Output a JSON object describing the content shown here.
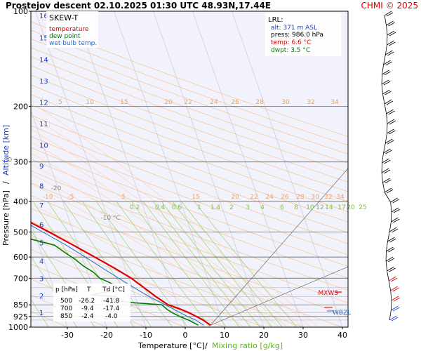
{
  "header": {
    "title": "Prostejov   descent   02.10.2025 01:30 UTC   48.93N,17.44E",
    "copyright": "CHMI © 2025"
  },
  "legend": {
    "title": "SKEW-T",
    "items": [
      {
        "label": "temperature",
        "color": "#e00000"
      },
      {
        "label": "dew point",
        "color": "#008000"
      },
      {
        "label": "wet bulb temp.",
        "color": "#1e6fd0"
      }
    ]
  },
  "lrl": {
    "title": "LRL:",
    "alt": "alt: 371 m ASL",
    "press": "press: 986.0 hPa",
    "temp": "temp: 6.6 °C",
    "dwpt": "dwpt: 3.5 °C"
  },
  "axes": {
    "xlabel_temp": "Temperature [°C]",
    "xlabel_sep": "/",
    "xlabel_mix": "Mixing ratio [g/kg]",
    "ylabel_pressure": "Pressure [hPa]",
    "ylabel_sep": "/",
    "ylabel_alt": "Altitude [km]"
  },
  "markers": {
    "mxws": "MXWS",
    "wbzl": "WBZL"
  },
  "table": {
    "headers": [
      "p [hPa]",
      "T",
      "Td [°C]"
    ],
    "rows": [
      [
        "500",
        "-26.2",
        "-41.8"
      ],
      [
        "700",
        "-9.4",
        "-17.4"
      ],
      [
        "850",
        "-2.4",
        "-4.0"
      ]
    ]
  },
  "chart_data": {
    "type": "line",
    "chart_kind": "skew-T log-p diagram",
    "title": "SKEW-T",
    "xlabel": "Temperature [°C] / Mixing ratio [g/kg]",
    "ylabel": "Pressure [hPa] / Altitude [km]",
    "xlim": [
      -35,
      45
    ],
    "ylim": [
      1000,
      100
    ],
    "y_scale": "log",
    "x_ticks": [
      "-30",
      "-20",
      "-10",
      "0",
      "10",
      "20",
      "30",
      "40"
    ],
    "y_ticks": [
      "100",
      "200",
      "300",
      "400",
      "500",
      "600",
      "700",
      "850",
      "925",
      "1000"
    ],
    "altitude_ticks_km": [
      "1",
      "2",
      "3",
      "4",
      "5",
      "6",
      "7",
      "8",
      "9",
      "10",
      "11",
      "12",
      "13",
      "14",
      "15",
      "16"
    ],
    "altitude_tick_pressures": [
      898,
      795,
      701,
      616,
      540,
      472,
      411,
      357,
      308,
      265,
      227,
      194,
      166,
      142,
      121,
      103
    ],
    "isotherm_labels": [
      "-80 °C",
      "-70",
      "-60",
      "-50",
      "-40",
      "-30",
      "-20",
      "-10 °C"
    ],
    "isotherm_label_values": [
      -80,
      -70,
      -60,
      -50,
      -40,
      -30,
      -20,
      -10
    ],
    "isotherm_label_pressures": [
      112,
      133,
      161,
      196,
      240,
      295,
      363,
      450
    ],
    "theta_labels_200": [
      "5",
      "10",
      "15",
      "20",
      "22",
      "24",
      "26",
      "28",
      "30",
      "32",
      "34"
    ],
    "theta_labels_380": [
      "-10",
      "-5",
      "5",
      "15",
      "20",
      "22",
      "24",
      "26",
      "28",
      "30",
      "32",
      "34"
    ],
    "mixing_ratio_labels": [
      "0.2",
      "0.4",
      "0.6",
      "1",
      "1.4",
      "2",
      "3",
      "4",
      "6",
      "8",
      "10",
      "12",
      "14",
      "17",
      "20",
      "25"
    ],
    "mixing_ratio_values": [
      0.2,
      0.4,
      0.6,
      1,
      1.4,
      2,
      3,
      4,
      6,
      8,
      10,
      12,
      14,
      17,
      20,
      25
    ],
    "grid": true,
    "series": [
      {
        "name": "temperature",
        "color": "#e00000",
        "points": [
          [
            986,
            6.6
          ],
          [
            950,
            5.2
          ],
          [
            925,
            3.8
          ],
          [
            900,
            2.2
          ],
          [
            875,
            0.2
          ],
          [
            850,
            -2.4
          ],
          [
            800,
            -4.8
          ],
          [
            750,
            -7.0
          ],
          [
            700,
            -9.4
          ],
          [
            650,
            -12.8
          ],
          [
            600,
            -16.8
          ],
          [
            550,
            -21.2
          ],
          [
            500,
            -26.2
          ],
          [
            450,
            -32.0
          ],
          [
            400,
            -38.5
          ],
          [
            350,
            -46.0
          ],
          [
            320,
            -51.0
          ],
          [
            300,
            -53.5
          ],
          [
            285,
            -53.0
          ],
          [
            270,
            -52.0
          ],
          [
            255,
            -50.5
          ],
          [
            240,
            -49.5
          ],
          [
            230,
            -49.0
          ],
          [
            220,
            -48.0
          ],
          [
            205,
            -47.0
          ],
          [
            195,
            -48.0
          ],
          [
            185,
            -50.0
          ],
          [
            175,
            -51.5
          ],
          [
            165,
            -53.5
          ],
          [
            155,
            -56.0
          ],
          [
            145,
            -58.5
          ],
          [
            135,
            -61.0
          ],
          [
            125,
            -63.5
          ],
          [
            115,
            -66.0
          ],
          [
            108,
            -67.5
          ],
          [
            103,
            -68.5
          ],
          [
            100,
            -69.0
          ]
        ]
      },
      {
        "name": "dew point",
        "color": "#008000",
        "points": [
          [
            986,
            3.5
          ],
          [
            950,
            1.5
          ],
          [
            925,
            -0.5
          ],
          [
            900,
            -2.0
          ],
          [
            880,
            -3.0
          ],
          [
            850,
            -4.0
          ],
          [
            835,
            -12.0
          ],
          [
            820,
            -16.0
          ],
          [
            800,
            -15.0
          ],
          [
            790,
            -21.0
          ],
          [
            775,
            -17.0
          ],
          [
            760,
            -15.0
          ],
          [
            740,
            -14.0
          ],
          [
            720,
            -15.5
          ],
          [
            700,
            -17.4
          ],
          [
            670,
            -18.5
          ],
          [
            640,
            -20.5
          ],
          [
            610,
            -22.0
          ],
          [
            580,
            -24.0
          ],
          [
            550,
            -26.0
          ],
          [
            520,
            -33.0
          ],
          [
            500,
            -41.8
          ],
          [
            480,
            -40.0
          ],
          [
            460,
            -42.0
          ],
          [
            440,
            -43.0
          ],
          [
            420,
            -44.5
          ],
          [
            400,
            -49.0
          ],
          [
            380,
            -53.0
          ],
          [
            360,
            -56.0
          ],
          [
            340,
            -58.5
          ],
          [
            320,
            -60.5
          ],
          [
            300,
            -63.0
          ],
          [
            280,
            -65.0
          ],
          [
            260,
            -68.0
          ],
          [
            240,
            -70.5
          ],
          [
            220,
            -73.0
          ],
          [
            200,
            -76.0
          ],
          [
            180,
            -79.0
          ],
          [
            160,
            -82.0
          ],
          [
            140,
            -84.5
          ],
          [
            120,
            -86.5
          ],
          [
            105,
            -88.0
          ],
          [
            100,
            -89.0
          ]
        ]
      },
      {
        "name": "wet bulb temp.",
        "color": "#1e6fd0",
        "points": [
          [
            986,
            4.9
          ],
          [
            950,
            3.3
          ],
          [
            925,
            1.6
          ],
          [
            900,
            0.0
          ],
          [
            875,
            -1.5
          ],
          [
            850,
            -3.1
          ],
          [
            800,
            -6.5
          ],
          [
            750,
            -9.5
          ],
          [
            700,
            -12.6
          ],
          [
            650,
            -15.8
          ],
          [
            600,
            -19.2
          ],
          [
            550,
            -23.0
          ],
          [
            500,
            -27.8
          ],
          [
            450,
            -33.0
          ],
          [
            400,
            -39.0
          ],
          [
            350,
            -46.2
          ],
          [
            320,
            -51.2
          ],
          [
            300,
            -53.6
          ],
          [
            285,
            -53.2
          ],
          [
            270,
            -52.4
          ],
          [
            255,
            -51.2
          ],
          [
            240,
            -50.5
          ],
          [
            230,
            -50.0
          ],
          [
            220,
            -49.0
          ],
          [
            205,
            -48.0
          ],
          [
            195,
            -48.8
          ],
          [
            185,
            -50.6
          ],
          [
            175,
            -52.0
          ],
          [
            165,
            -54.0
          ],
          [
            155,
            -56.3
          ],
          [
            145,
            -58.8
          ],
          [
            135,
            -61.2
          ],
          [
            125,
            -63.7
          ],
          [
            115,
            -66.2
          ],
          [
            108,
            -67.7
          ],
          [
            103,
            -68.6
          ],
          [
            100,
            -69.1
          ]
        ]
      }
    ]
  }
}
